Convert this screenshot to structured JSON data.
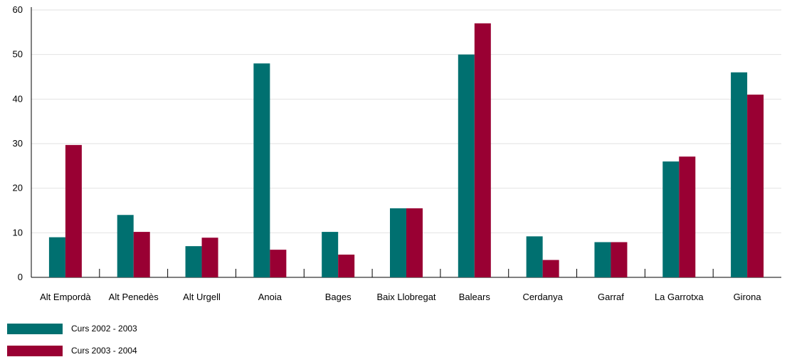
{
  "chart_data": {
    "type": "bar",
    "title": "",
    "xlabel": "",
    "ylabel": "",
    "ylim": [
      0,
      60
    ],
    "yticks": [
      0,
      10,
      20,
      30,
      40,
      50,
      60
    ],
    "grid": true,
    "legend_position": "bottom-left",
    "categories": [
      "Alt Empordà",
      "Alt Penedès",
      "Alt Urgell",
      "Anoia",
      "Bages",
      "Baix Llobregat",
      "Balears",
      "Cerdanya",
      "Garraf",
      "La Garrotxa",
      "Girona"
    ],
    "series": [
      {
        "name": "Curs 2002 - 2003",
        "color": "#007070",
        "values": [
          9,
          14,
          7,
          48,
          10.2,
          15.5,
          50,
          9.2,
          7.9,
          26,
          46
        ]
      },
      {
        "name": "Curs 2003 - 2004",
        "color": "#990033",
        "values": [
          29.7,
          10.2,
          8.9,
          6.2,
          5.1,
          15.5,
          57,
          3.9,
          7.9,
          27.1,
          41
        ]
      }
    ]
  }
}
